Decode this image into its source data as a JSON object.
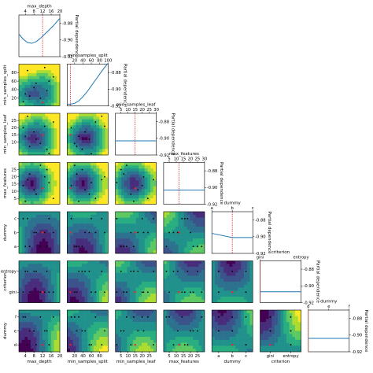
{
  "chart_data": {
    "type": "pairwise-partial-dependence",
    "dimensions": [
      {
        "name": "max_depth",
        "kind": "numeric",
        "range": [
          1,
          20
        ],
        "tick_labels": [
          "4",
          "8",
          "12",
          "16",
          "20"
        ],
        "top_ticks": [
          "4",
          "8",
          "12",
          "16",
          "20"
        ],
        "left_ticks": [],
        "min": 1,
        "max": 20
      },
      {
        "name": "min_samples_split",
        "kind": "numeric",
        "range": [
          2,
          100
        ],
        "tick_labels": [
          "20",
          "40",
          "60",
          "80"
        ],
        "top_ticks": [
          "20",
          "40",
          "60",
          "80",
          "100"
        ],
        "left_ticks": [
          "20",
          "40",
          "60",
          "80"
        ],
        "min": 2,
        "max": 100
      },
      {
        "name": "min_samples_leaf",
        "kind": "numeric",
        "range": [
          1,
          30
        ],
        "tick_labels": [
          "5",
          "10",
          "15",
          "20",
          "25"
        ],
        "top_ticks": [
          "5",
          "10",
          "15",
          "20",
          "25",
          "30"
        ],
        "left_ticks": [
          "10",
          "15",
          "20",
          "25"
        ],
        "min": 1,
        "max": 30
      },
      {
        "name": "max_features",
        "kind": "numeric",
        "range": [
          1,
          30
        ],
        "tick_labels": [
          "5",
          "10",
          "15",
          "20",
          "25"
        ],
        "top_ticks": [
          "5",
          "10",
          "15",
          "20",
          "25",
          "30"
        ],
        "left_ticks": [
          "5",
          "10",
          "15",
          "20",
          "25"
        ],
        "min": 1,
        "max": 30
      },
      {
        "name": "dummy",
        "kind": "categorical",
        "categories": [
          "a",
          "b",
          "c"
        ],
        "tick_labels": [
          "a",
          "b",
          "c"
        ],
        "top_ticks": [
          "a",
          "b",
          "c"
        ],
        "left_ticks": [
          "a",
          "b",
          "c"
        ]
      },
      {
        "name": "criterion",
        "kind": "categorical",
        "categories": [
          "gini",
          "entropy"
        ],
        "tick_labels": [
          "gini",
          "entropy"
        ],
        "top_ticks": [
          "gini",
          "entropy"
        ],
        "left_ticks": [
          "gini",
          "entropy"
        ]
      },
      {
        "name": "dummy",
        "kind": "categorical",
        "categories": [
          "d",
          "e",
          "f"
        ],
        "tick_labels": [
          "d",
          "e",
          "f"
        ],
        "top_ticks": [
          "d",
          "e",
          "f"
        ],
        "left_ticks": [
          "d",
          "e",
          "f"
        ]
      }
    ],
    "partial_dependence": {
      "ylabel": "Partial dependence",
      "ylim": [
        -0.92,
        -0.87
      ],
      "tick_labels": [
        "-0.88",
        "-0.90",
        "-0.92"
      ],
      "tick_values": [
        -0.88,
        -0.9,
        -0.92
      ],
      "series": [
        {
          "x": [
            1,
            3,
            5,
            7,
            9,
            11,
            13,
            15,
            17,
            20
          ],
          "y": [
            -0.893,
            -0.899,
            -0.903,
            -0.904,
            -0.902,
            -0.898,
            -0.893,
            -0.888,
            -0.883,
            -0.874
          ]
        },
        {
          "x": [
            2,
            10,
            20,
            30,
            40,
            50,
            60,
            70,
            80,
            90,
            100
          ],
          "y": [
            -0.918,
            -0.918,
            -0.917,
            -0.914,
            -0.909,
            -0.903,
            -0.896,
            -0.889,
            -0.882,
            -0.875,
            -0.869
          ]
        },
        {
          "x": [
            1,
            30
          ],
          "y": [
            -0.903,
            -0.903
          ]
        },
        {
          "x": [
            1,
            30
          ],
          "y": [
            -0.903,
            -0.903
          ]
        },
        {
          "x": [
            0,
            1,
            2
          ],
          "y": [
            -0.896,
            -0.901,
            -0.901
          ]
        },
        {
          "x": [
            0,
            1
          ],
          "y": [
            -0.907,
            -0.907
          ]
        },
        {
          "x": [
            0,
            1,
            2
          ],
          "y": [
            -0.904,
            -0.904,
            -0.904
          ]
        }
      ]
    },
    "best_point": [
      12,
      10,
      15,
      12,
      1,
      0,
      0
    ],
    "samples": [
      [
        6,
        25,
        7,
        22,
        0,
        0,
        1
      ],
      [
        9,
        55,
        12,
        8,
        1,
        1,
        0
      ],
      [
        3,
        12,
        20,
        14,
        2,
        0,
        2
      ],
      [
        14,
        38,
        5,
        25,
        0,
        1,
        1
      ],
      [
        17,
        70,
        24,
        5,
        1,
        0,
        2
      ],
      [
        5,
        85,
        28,
        18,
        2,
        1,
        0
      ],
      [
        11,
        20,
        9,
        28,
        0,
        0,
        2
      ],
      [
        8,
        45,
        17,
        11,
        1,
        1,
        1
      ],
      [
        15,
        60,
        2,
        16,
        2,
        0,
        0
      ],
      [
        4,
        30,
        14,
        3,
        0,
        1,
        2
      ],
      [
        13,
        92,
        21,
        20,
        1,
        0,
        1
      ]
    ],
    "colormap": [
      "#440154",
      "#472d7b",
      "#3b528b",
      "#2c728e",
      "#21918c",
      "#28ae80",
      "#5ec962",
      "#addc30",
      "#fde725"
    ]
  }
}
